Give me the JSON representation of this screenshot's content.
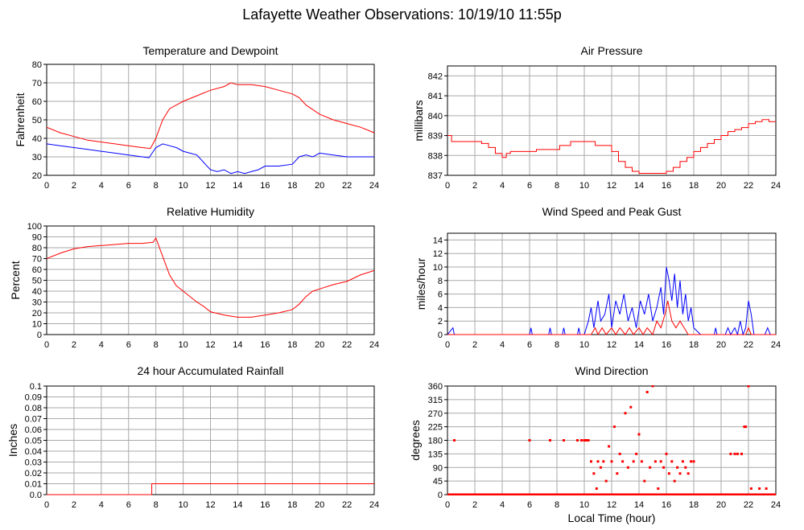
{
  "page_title": "Lafayette Weather Observations: 10/19/10 11:55p",
  "xlabel": "Local Time (hour)",
  "colors": {
    "red": "#ff0000",
    "blue": "#0000ff",
    "grid": "#aaaaaa"
  },
  "chart_data": [
    {
      "id": "temp",
      "type": "line",
      "title": "Temperature and Dewpoint",
      "ylabel": "Fahrenheit",
      "xlim": [
        0,
        24
      ],
      "ylim": [
        20,
        80
      ],
      "yticks": [
        "20",
        "30",
        "40",
        "50",
        "60",
        "70",
        "80"
      ],
      "xticks": [
        "0",
        "2",
        "4",
        "6",
        "8",
        "10",
        "12",
        "14",
        "16",
        "18",
        "20",
        "22",
        "24"
      ],
      "grid": true,
      "series": [
        {
          "color": "#ff0000",
          "step": false,
          "x": [
            0,
            1,
            2,
            3,
            4,
            5,
            6,
            7,
            7.6,
            8,
            8.5,
            9,
            10,
            11,
            12,
            13,
            13.5,
            14,
            15,
            16,
            17,
            18,
            18.5,
            19,
            20,
            21,
            22,
            23,
            24
          ],
          "y": [
            46,
            43,
            41,
            39,
            38,
            37,
            36,
            35,
            34.5,
            40,
            50,
            56,
            60,
            63,
            66,
            68,
            70,
            69,
            69,
            68,
            66,
            64,
            62,
            58,
            53,
            50,
            48,
            46,
            43
          ]
        },
        {
          "color": "#0000ff",
          "step": false,
          "x": [
            0,
            1,
            2,
            3,
            4,
            5,
            6,
            7,
            7.5,
            8,
            8.5,
            9,
            9.5,
            10,
            10.5,
            11,
            11.5,
            12,
            12.5,
            13,
            13.5,
            14,
            14.5,
            15,
            15.5,
            16,
            17,
            18,
            18.5,
            19,
            19.5,
            20,
            21,
            22,
            23,
            24
          ],
          "y": [
            37,
            36,
            35,
            34,
            33,
            32,
            31,
            30,
            29.5,
            35,
            37,
            36,
            35,
            33,
            32,
            31,
            27,
            23,
            22,
            23,
            21,
            22,
            21,
            22,
            23,
            25,
            25,
            26,
            30,
            31,
            30,
            32,
            31,
            30,
            30,
            30
          ]
        }
      ]
    },
    {
      "id": "pressure",
      "type": "line",
      "title": "Air Pressure",
      "ylabel": "millibars",
      "xlim": [
        0,
        24
      ],
      "ylim": [
        837,
        842.5
      ],
      "yticks": [
        "837",
        "838",
        "839",
        "840",
        "841",
        "842"
      ],
      "xticks": [
        "0",
        "2",
        "4",
        "6",
        "8",
        "10",
        "12",
        "14",
        "16",
        "18",
        "20",
        "22",
        "24"
      ],
      "grid": true,
      "series": [
        {
          "color": "#ff0000",
          "step": true,
          "x": [
            0,
            0.3,
            2.5,
            3,
            3.5,
            4,
            4.3,
            4.6,
            6.5,
            8.2,
            9,
            10.8,
            12,
            12.5,
            13,
            13.5,
            14,
            16,
            16.5,
            17,
            17.5,
            18,
            18.5,
            19,
            19.5,
            20,
            20.5,
            21,
            21.5,
            22,
            22.5,
            23,
            23.5,
            24
          ],
          "y": [
            839,
            838.7,
            838.6,
            838.4,
            838.1,
            837.9,
            838.1,
            838.2,
            838.3,
            838.5,
            838.7,
            838.5,
            838.2,
            837.7,
            837.4,
            837.2,
            837.1,
            837.2,
            837.4,
            837.7,
            837.9,
            838.2,
            838.4,
            838.6,
            838.8,
            839,
            839.2,
            839.3,
            839.4,
            839.6,
            839.7,
            839.8,
            839.7,
            839.7
          ]
        }
      ]
    },
    {
      "id": "humidity",
      "type": "line",
      "title": "Relative Humidity",
      "ylabel": "Percent",
      "xlim": [
        0,
        24
      ],
      "ylim": [
        0,
        100
      ],
      "yticks": [
        "0",
        "10",
        "20",
        "30",
        "40",
        "50",
        "60",
        "70",
        "80",
        "90",
        "100"
      ],
      "xticks": [
        "0",
        "2",
        "4",
        "6",
        "8",
        "10",
        "12",
        "14",
        "16",
        "18",
        "20",
        "22",
        "24"
      ],
      "grid": true,
      "series": [
        {
          "color": "#ff0000",
          "step": false,
          "x": [
            0,
            1,
            2,
            3,
            4,
            5,
            6,
            7,
            7.8,
            8,
            8.5,
            9,
            9.5,
            10,
            10.5,
            11,
            11.5,
            12,
            13,
            14,
            15,
            16,
            17,
            18,
            18.5,
            19,
            19.5,
            20,
            21,
            22,
            23,
            24
          ],
          "y": [
            70,
            75,
            79,
            81,
            82,
            83,
            84,
            84,
            85,
            89,
            72,
            55,
            45,
            40,
            35,
            30,
            26,
            21,
            18,
            16,
            16,
            18,
            20,
            23,
            28,
            35,
            40,
            42,
            46,
            49,
            55,
            59
          ]
        }
      ]
    },
    {
      "id": "wind",
      "type": "line",
      "title": "Wind Speed and Peak Gust",
      "ylabel": "miles/hour",
      "xlim": [
        0,
        24
      ],
      "ylim": [
        0,
        15
      ],
      "yticks": [
        "0",
        "2",
        "4",
        "6",
        "8",
        "10",
        "12",
        "14"
      ],
      "xticks": [
        "0",
        "2",
        "4",
        "6",
        "8",
        "10",
        "12",
        "14",
        "16",
        "18",
        "20",
        "22",
        "24"
      ],
      "grid": true,
      "series": [
        {
          "color": "#0000ff",
          "step": false,
          "x": [
            0,
            0.4,
            0.5,
            0.6,
            6,
            6.1,
            6.2,
            7.4,
            7.5,
            7.6,
            8.4,
            8.5,
            8.6,
            9.5,
            9.6,
            9.7,
            10,
            10.3,
            10.5,
            10.7,
            11,
            11.2,
            11.5,
            11.8,
            12,
            12.3,
            12.6,
            12.9,
            13.2,
            13.5,
            13.8,
            14.1,
            14.4,
            14.7,
            15,
            15.3,
            15.6,
            15.8,
            16,
            16.2,
            16.4,
            16.6,
            16.8,
            17,
            17.2,
            17.4,
            17.6,
            17.8,
            18,
            18.5,
            19,
            19.5,
            19.6,
            19.7,
            20.3,
            20.5,
            20.7,
            21,
            21.2,
            21.4,
            21.6,
            21.8,
            22,
            22.2,
            22.4,
            22.6,
            23.2,
            23.4,
            23.6,
            23.8
          ],
          "y": [
            0,
            1,
            0,
            0,
            0,
            1,
            0,
            0,
            1,
            0,
            0,
            1,
            0,
            0,
            1,
            0,
            0,
            2,
            4,
            1,
            5,
            2,
            3,
            6,
            1,
            5,
            3,
            6,
            2,
            4,
            1,
            5,
            3,
            6,
            2,
            4,
            7,
            3,
            10,
            8,
            5,
            9,
            4,
            8,
            3,
            6,
            2,
            4,
            1,
            0,
            0,
            0,
            1,
            0,
            0,
            1,
            0,
            1,
            0,
            2,
            0,
            1,
            5,
            3,
            0,
            0,
            0,
            1,
            0,
            0
          ]
        },
        {
          "color": "#ff0000",
          "step": false,
          "x": [
            0,
            10,
            10.5,
            10.8,
            11,
            11.3,
            11.6,
            12,
            12.3,
            12.6,
            13,
            13.3,
            13.6,
            14,
            14.3,
            14.6,
            15,
            15.3,
            15.6,
            15.9,
            16.1,
            16.4,
            16.7,
            17,
            17.3,
            17.6,
            18,
            21.8,
            22,
            22.2,
            24
          ],
          "y": [
            0,
            0,
            0,
            1,
            0,
            1,
            0,
            1,
            0,
            1,
            0,
            1,
            0,
            1,
            0,
            1,
            0,
            2,
            1,
            3,
            5,
            2,
            1,
            2,
            1,
            0,
            0,
            0,
            1,
            0,
            0
          ]
        }
      ]
    },
    {
      "id": "rain",
      "type": "line",
      "title": "24 hour Accumulated Rainfall",
      "ylabel": "Inches",
      "xlim": [
        0,
        24
      ],
      "ylim": [
        0,
        0.1
      ],
      "yticks": [
        "0.0",
        "0.01",
        "0.02",
        "0.03",
        "0.04",
        "0.05",
        "0.06",
        "0.07",
        "0.08",
        "0.09",
        "0.1"
      ],
      "xticks": [
        "0",
        "2",
        "4",
        "6",
        "8",
        "10",
        "12",
        "14",
        "16",
        "18",
        "20",
        "22",
        "24"
      ],
      "grid": true,
      "series": [
        {
          "color": "#ff0000",
          "step": true,
          "x": [
            0,
            7.7,
            24
          ],
          "y": [
            0,
            0.01,
            0.01
          ]
        }
      ]
    },
    {
      "id": "direction",
      "type": "scatter",
      "title": "Wind Direction",
      "ylabel": "degrees",
      "xlim": [
        0,
        24
      ],
      "ylim": [
        0,
        360
      ],
      "yticks": [
        "0",
        "45",
        "90",
        "135",
        "180",
        "225",
        "270",
        "315",
        "360"
      ],
      "xticks": [
        "0",
        "2",
        "4",
        "6",
        "8",
        "10",
        "12",
        "14",
        "16",
        "18",
        "20",
        "22",
        "24"
      ],
      "grid": true,
      "series": [
        {
          "color": "#ff0000",
          "baseline": {
            "from": 0,
            "to": 24,
            "step": 0.1,
            "y": 0
          },
          "x": [
            0.5,
            6,
            7.5,
            8.5,
            9.5,
            9.8,
            10,
            10.1,
            10.2,
            10.3,
            10.5,
            10.7,
            10.9,
            11,
            11.2,
            11.4,
            11.6,
            11.8,
            12,
            12.2,
            12.4,
            12.6,
            12.8,
            13,
            13.2,
            13.4,
            13.6,
            13.8,
            14,
            14.2,
            14.4,
            14.6,
            14.8,
            15,
            15.2,
            15.4,
            15.6,
            15.8,
            16,
            16.2,
            16.4,
            16.6,
            16.8,
            17,
            17.2,
            17.4,
            17.6,
            17.8,
            18,
            19.5,
            20.5,
            20.7,
            21,
            21.2,
            21.5,
            21.7,
            21.8,
            22,
            22.2,
            22.8,
            23.3
          ],
          "y": [
            180,
            180,
            180,
            180,
            180,
            180,
            180,
            180,
            180,
            180,
            110,
            70,
            20,
            110,
            90,
            110,
            45,
            160,
            110,
            225,
            70,
            135,
            110,
            270,
            90,
            290,
            110,
            135,
            200,
            110,
            45,
            340,
            90,
            360,
            110,
            20,
            110,
            90,
            135,
            70,
            110,
            45,
            90,
            70,
            110,
            90,
            70,
            110,
            110,
            0,
            0,
            135,
            135,
            135,
            135,
            225,
            225,
            360,
            20,
            20,
            20
          ]
        }
      ]
    }
  ]
}
